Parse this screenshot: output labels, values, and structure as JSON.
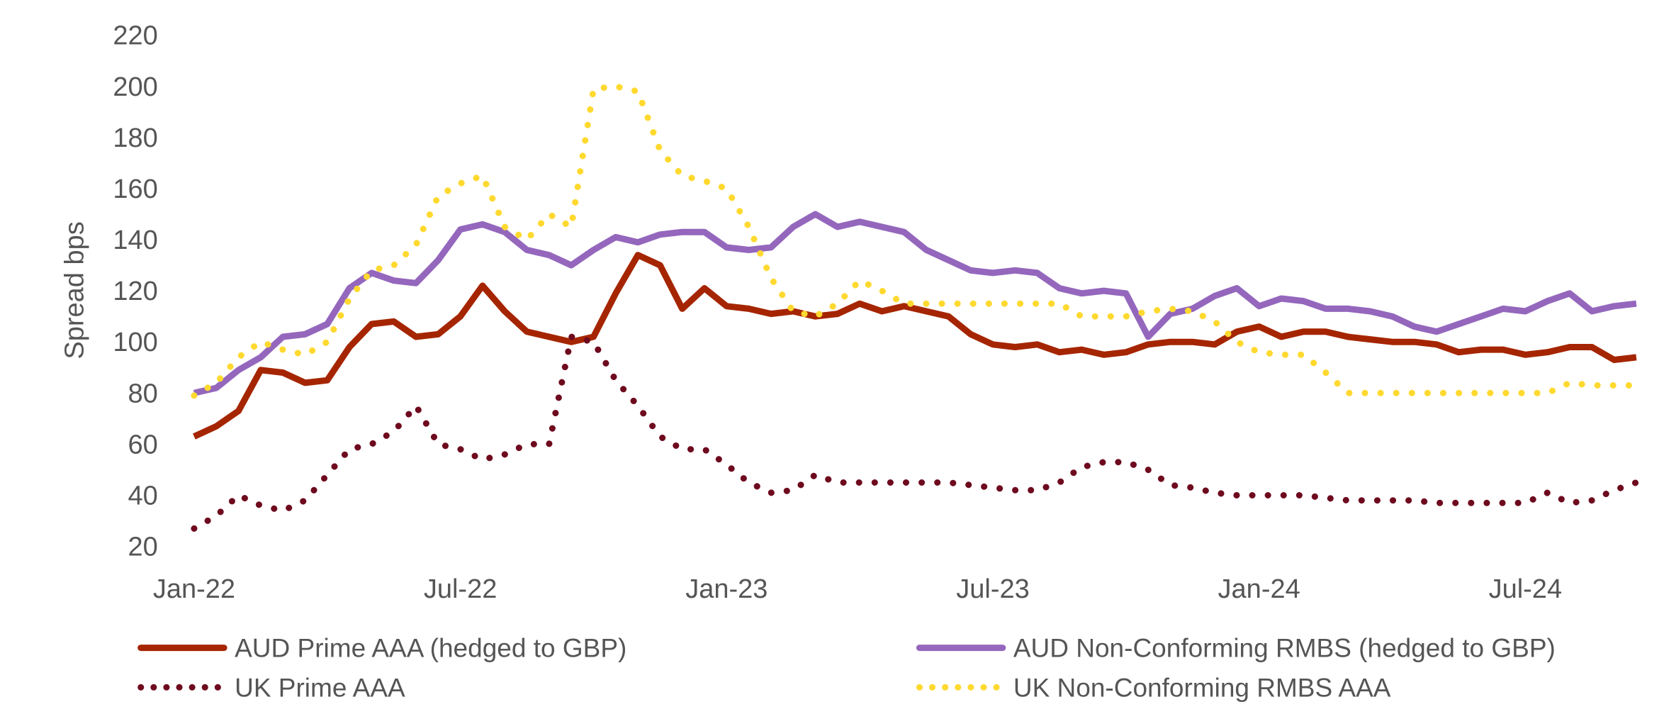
{
  "chart_data": {
    "type": "line",
    "title": "",
    "xlabel": "",
    "ylabel": "Spread bps",
    "ylim": [
      20,
      220
    ],
    "yticks": [
      20,
      40,
      60,
      80,
      100,
      120,
      140,
      160,
      180,
      200,
      220
    ],
    "xticks": [
      {
        "label": "Jan-22",
        "month": 0
      },
      {
        "label": "Jul-22",
        "month": 6
      },
      {
        "label": "Jan-23",
        "month": 12
      },
      {
        "label": "Jul-23",
        "month": 18
      },
      {
        "label": "Jan-24",
        "month": 24
      },
      {
        "label": "Jul-24",
        "month": 30
      }
    ],
    "xlim_months": [
      0,
      32.5
    ],
    "x_unit": "months since Jan-22",
    "grid": false,
    "legend_position": "bottom",
    "x": [
      0,
      0.5,
      1,
      1.5,
      2,
      2.5,
      3,
      3.5,
      4,
      4.5,
      5,
      5.5,
      6,
      6.5,
      7,
      7.5,
      8,
      8.5,
      9,
      9.5,
      10,
      10.5,
      11,
      11.5,
      12,
      12.5,
      13,
      13.5,
      14,
      14.5,
      15,
      15.5,
      16,
      16.5,
      17,
      17.5,
      18,
      18.5,
      19,
      19.5,
      20,
      20.5,
      21,
      21.5,
      22,
      22.5,
      23,
      23.5,
      24,
      24.5,
      25,
      25.5,
      26,
      26.5,
      27,
      27.5,
      28,
      28.5,
      29,
      29.5,
      30,
      30.5,
      31,
      31.5,
      32,
      32.5
    ],
    "series": [
      {
        "name": "AUD Prime AAA (hedged to GBP)",
        "color": "#A52500",
        "style": "solid",
        "values": [
          63,
          67,
          73,
          89,
          88,
          84,
          85,
          98,
          107,
          108,
          102,
          103,
          110,
          122,
          112,
          104,
          102,
          100,
          102,
          119,
          134,
          130,
          113,
          121,
          114,
          113,
          111,
          112,
          110,
          111,
          115,
          112,
          114,
          112,
          110,
          103,
          99,
          98,
          99,
          96,
          97,
          95,
          96,
          99,
          100,
          100,
          99,
          104,
          106,
          102,
          104,
          104,
          102,
          101,
          100,
          100,
          99,
          96,
          97,
          97,
          95,
          96,
          98,
          98,
          93,
          94
        ],
        "values_note": "approximate, read from chart"
      },
      {
        "name": "AUD Non-Conforming RMBS (hedged to GBP)",
        "color": "#9467BD",
        "style": "solid",
        "values": [
          80,
          82,
          89,
          94,
          102,
          103,
          107,
          121,
          127,
          124,
          123,
          132,
          144,
          146,
          143,
          136,
          134,
          130,
          136,
          141,
          139,
          142,
          143,
          143,
          137,
          136,
          137,
          145,
          150,
          145,
          147,
          145,
          143,
          136,
          132,
          128,
          127,
          128,
          127,
          121,
          119,
          120,
          119,
          102,
          111,
          113,
          118,
          121,
          114,
          117,
          116,
          113,
          113,
          112,
          110,
          106,
          104,
          107,
          110,
          113,
          112,
          116,
          119,
          112,
          114,
          115
        ],
        "values_note": "approximate, read from chart"
      },
      {
        "name": "UK Prime AAA",
        "color": "#6E0A1E",
        "style": "dotted",
        "values": [
          27,
          32,
          40,
          36,
          34,
          38,
          48,
          58,
          60,
          65,
          75,
          60,
          58,
          54,
          56,
          60,
          60,
          102,
          100,
          85,
          75,
          63,
          58,
          58,
          52,
          45,
          41,
          42,
          48,
          45,
          45,
          45,
          45,
          45,
          45,
          44,
          43,
          42,
          42,
          45,
          51,
          53,
          53,
          50,
          44,
          43,
          41,
          40,
          40,
          40,
          40,
          39,
          38,
          38,
          38,
          38,
          37,
          37,
          37,
          37,
          37,
          41,
          37,
          38,
          42,
          45
        ],
        "values_note": "approximate, read from chart"
      },
      {
        "name": "UK Non-Conforming RMBS AAA",
        "color": "#FFD92F",
        "style": "dotted",
        "values": [
          79,
          84,
          94,
          100,
          97,
          95,
          100,
          117,
          128,
          130,
          138,
          157,
          162,
          165,
          145,
          140,
          150,
          145,
          199,
          200,
          198,
          175,
          165,
          163,
          160,
          145,
          125,
          112,
          110,
          115,
          124,
          120,
          115,
          115,
          115,
          115,
          115,
          115,
          115,
          115,
          110,
          110,
          110,
          112,
          113,
          112,
          108,
          100,
          96,
          95,
          95,
          88,
          80,
          80,
          80,
          80,
          80,
          80,
          80,
          80,
          80,
          80,
          84,
          83,
          83,
          83
        ],
        "values_note": "approximate, read from chart"
      }
    ]
  }
}
